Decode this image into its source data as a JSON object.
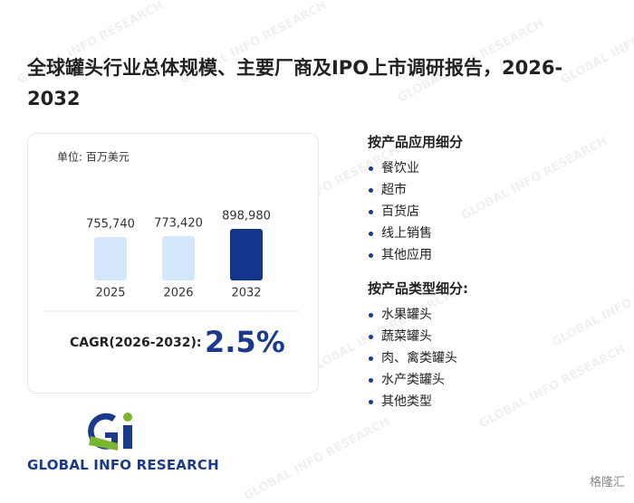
{
  "title": "全球罐头行业总体规模、主要厂商及IPO上市调研报告，2026-2032",
  "chart_data": {
    "type": "bar",
    "unit_label": "单位: 百万美元",
    "categories": [
      "2025",
      "2026",
      "2032"
    ],
    "values": [
      755740,
      773420,
      898980
    ],
    "value_labels": [
      "755,740",
      "773,420",
      "898,980"
    ],
    "colors": [
      "#d5e8fb",
      "#d5e8fb",
      "#13358c"
    ]
  },
  "cagr": {
    "label": "CAGR(2026-2032):",
    "value": "2.5%"
  },
  "segments": [
    {
      "heading": "按产品应用细分",
      "items": [
        "餐饮业",
        "超市",
        "百货店",
        "线上销售",
        "其他应用"
      ]
    },
    {
      "heading": "按产品类型细分:",
      "items": [
        "水果罐头",
        "蔬菜罐头",
        "肉、禽类罐头",
        "水产类罐头",
        "其他类型"
      ]
    }
  ],
  "logo": "GLOBAL INFO RESEARCH",
  "brand": "格隆汇"
}
